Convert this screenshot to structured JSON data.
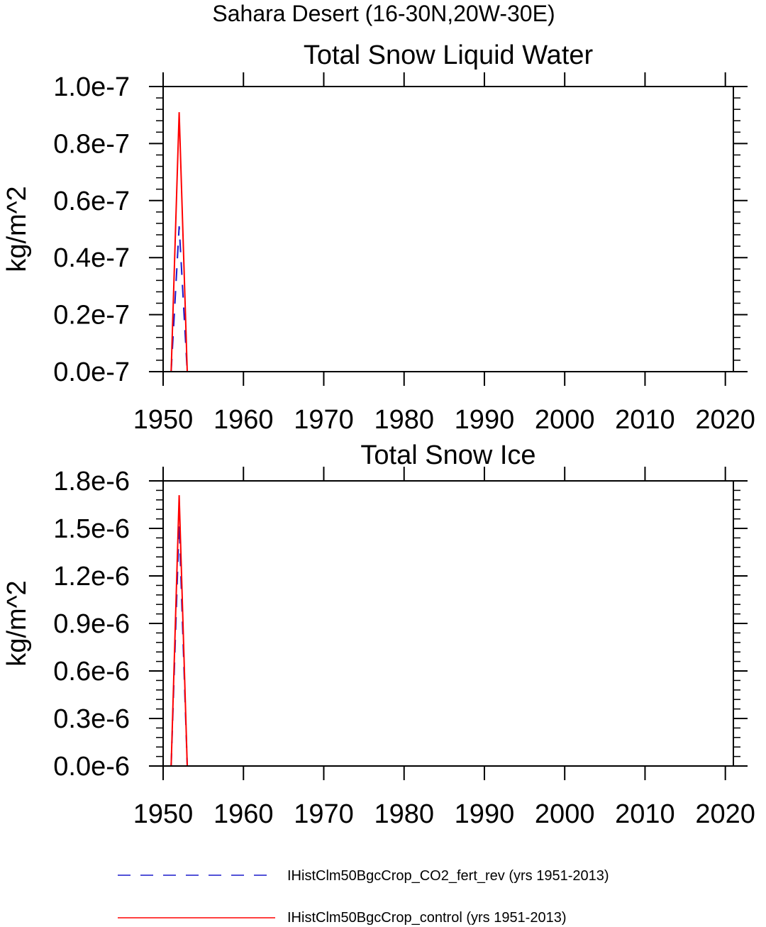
{
  "figure": {
    "title": "Sahara Desert (16-30N,20W-30E)"
  },
  "chart_data": [
    {
      "type": "line",
      "title": "Total Snow Liquid Water",
      "xlabel": "",
      "ylabel": "kg/m^2",
      "xlim": [
        1950,
        2021
      ],
      "ylim": [
        0,
        1e-07
      ],
      "xticks": [
        1950,
        1960,
        1970,
        1980,
        1990,
        2000,
        2010,
        2020
      ],
      "xtick_labels": [
        "1950",
        "1960",
        "1970",
        "1980",
        "1990",
        "2000",
        "2010",
        "2020"
      ],
      "yticks": [
        0,
        2e-08,
        4e-08,
        6e-08,
        8e-08,
        1e-07
      ],
      "ytick_labels": [
        "0.0e-7",
        "0.2e-7",
        "0.4e-7",
        "0.6e-7",
        "0.8e-7",
        "1.0e-7"
      ],
      "grid": false,
      "series": [
        {
          "name": "IHistClm50BgcCrop_CO2_fert_rev (yrs 1951-2013)",
          "color": "#1a1acc",
          "dash": "dashed",
          "x": [
            1951,
            1952,
            1953,
            2013
          ],
          "y": [
            0,
            5.1e-08,
            0,
            0
          ]
        },
        {
          "name": "IHistClm50BgcCrop_control (yrs 1951-2013)",
          "color": "#ff0000",
          "dash": "solid",
          "x": [
            1951,
            1952,
            1953,
            2013
          ],
          "y": [
            0,
            9.1e-08,
            0,
            0
          ]
        }
      ]
    },
    {
      "type": "line",
      "title": "Total Snow Ice",
      "xlabel": "",
      "ylabel": "kg/m^2",
      "xlim": [
        1950,
        2021
      ],
      "ylim": [
        0,
        1.8e-06
      ],
      "xticks": [
        1950,
        1960,
        1970,
        1980,
        1990,
        2000,
        2010,
        2020
      ],
      "xtick_labels": [
        "1950",
        "1960",
        "1970",
        "1980",
        "1990",
        "2000",
        "2010",
        "2020"
      ],
      "yticks": [
        0,
        3e-07,
        6e-07,
        9e-07,
        1.2e-06,
        1.5e-06,
        1.8e-06
      ],
      "ytick_labels": [
        "0.0e-6",
        "0.3e-6",
        "0.6e-6",
        "0.9e-6",
        "1.2e-6",
        "1.5e-6",
        "1.8e-6"
      ],
      "grid": false,
      "series": [
        {
          "name": "IHistClm50BgcCrop_CO2_fert_rev (yrs 1951-2013)",
          "color": "#1a1acc",
          "dash": "dashed",
          "x": [
            1951,
            1952,
            1953,
            2013
          ],
          "y": [
            0,
            1.53e-06,
            0,
            0
          ]
        },
        {
          "name": "IHistClm50BgcCrop_control (yrs 1951-2013)",
          "color": "#ff0000",
          "dash": "solid",
          "x": [
            1951,
            1952,
            1953,
            2013
          ],
          "y": [
            0,
            1.71e-06,
            0,
            0
          ]
        }
      ]
    }
  ],
  "legend": {
    "position": "bottom",
    "items": [
      {
        "label": "IHistClm50BgcCrop_CO2_fert_rev (yrs 1951-2013)",
        "color": "#1a1acc",
        "dash": "dashed"
      },
      {
        "label": "IHistClm50BgcCrop_control (yrs 1951-2013)",
        "color": "#ff0000",
        "dash": "solid"
      }
    ]
  }
}
